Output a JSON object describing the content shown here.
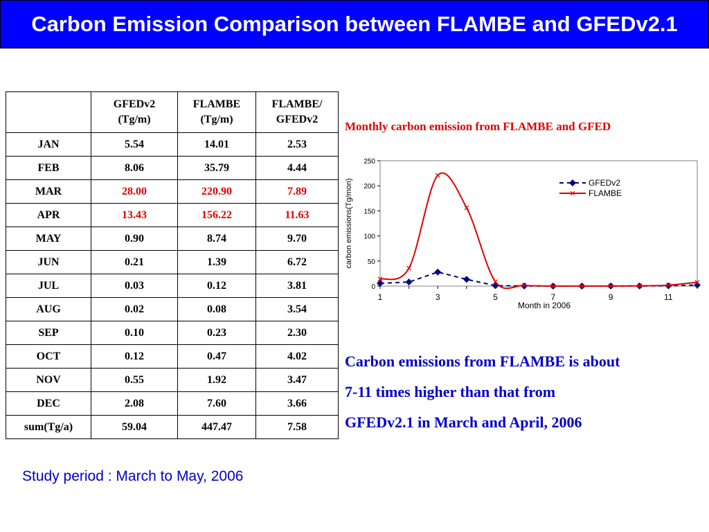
{
  "title": "Carbon Emission Comparison between FLAMBE and GFEDv2.1",
  "table": {
    "headers": [
      "",
      "GFEDv2\n(Tg/m)",
      "FLAMBE\n(Tg/m)",
      "FLAMBE/\nGFEDv2"
    ],
    "rows": [
      {
        "label": "JAN",
        "gfed": "5.54",
        "flambe": "14.01",
        "ratio": "2.53",
        "highlight": false
      },
      {
        "label": "FEB",
        "gfed": "8.06",
        "flambe": "35.79",
        "ratio": "4.44",
        "highlight": false
      },
      {
        "label": "MAR",
        "gfed": "28.00",
        "flambe": "220.90",
        "ratio": "7.89",
        "highlight": true
      },
      {
        "label": "APR",
        "gfed": "13.43",
        "flambe": "156.22",
        "ratio": "11.63",
        "highlight": true
      },
      {
        "label": "MAY",
        "gfed": "0.90",
        "flambe": "8.74",
        "ratio": "9.70",
        "highlight": false
      },
      {
        "label": "JUN",
        "gfed": "0.21",
        "flambe": "1.39",
        "ratio": "6.72",
        "highlight": false
      },
      {
        "label": "JUL",
        "gfed": "0.03",
        "flambe": "0.12",
        "ratio": "3.81",
        "highlight": false
      },
      {
        "label": "AUG",
        "gfed": "0.02",
        "flambe": "0.08",
        "ratio": "3.54",
        "highlight": false
      },
      {
        "label": "SEP",
        "gfed": "0.10",
        "flambe": "0.23",
        "ratio": "2.30",
        "highlight": false
      },
      {
        "label": "OCT",
        "gfed": "0.12",
        "flambe": "0.47",
        "ratio": "4.02",
        "highlight": false
      },
      {
        "label": "NOV",
        "gfed": "0.55",
        "flambe": "1.92",
        "ratio": "3.47",
        "highlight": false
      },
      {
        "label": "DEC",
        "gfed": "2.08",
        "flambe": "7.60",
        "ratio": "3.66",
        "highlight": false
      },
      {
        "label": "sum(Tg/a)",
        "gfed": "59.04",
        "flambe": "447.47",
        "ratio": "7.58",
        "highlight": false
      }
    ]
  },
  "chart_data": {
    "type": "line",
    "title": "Monthly carbon emission from FLAMBE and GFED",
    "xlabel": "Month in 2006",
    "ylabel": "carbon emissions(Tg/mon)",
    "x": [
      1,
      2,
      3,
      4,
      5,
      6,
      7,
      8,
      9,
      10,
      11,
      12
    ],
    "xticks": [
      "1",
      "3",
      "5",
      "7",
      "9",
      "11"
    ],
    "xlim": [
      1,
      12
    ],
    "ylim": [
      0,
      250
    ],
    "yticks": [
      0,
      50,
      100,
      150,
      200,
      250
    ],
    "legend": "top-right",
    "grid": false,
    "series": [
      {
        "name": "GFEDv2",
        "color": "#000080",
        "style": "dashed",
        "marker": "diamond",
        "values": [
          5.54,
          8.06,
          28.0,
          13.43,
          0.9,
          0.21,
          0.03,
          0.02,
          0.1,
          0.12,
          0.55,
          2.08
        ]
      },
      {
        "name": "FLAMBE",
        "color": "#e00000",
        "style": "solid",
        "marker": "x",
        "values": [
          14.01,
          35.79,
          220.9,
          156.22,
          8.74,
          1.39,
          0.12,
          0.08,
          0.23,
          0.47,
          1.92,
          7.6
        ]
      }
    ]
  },
  "conclusion": {
    "line1": "Carbon emissions from FLAMBE is about",
    "line2": "7-11 times higher than that from",
    "line3": "GFEDv2.1 in March and April, 2006"
  },
  "study_period": "Study period :   March to May, 2006"
}
